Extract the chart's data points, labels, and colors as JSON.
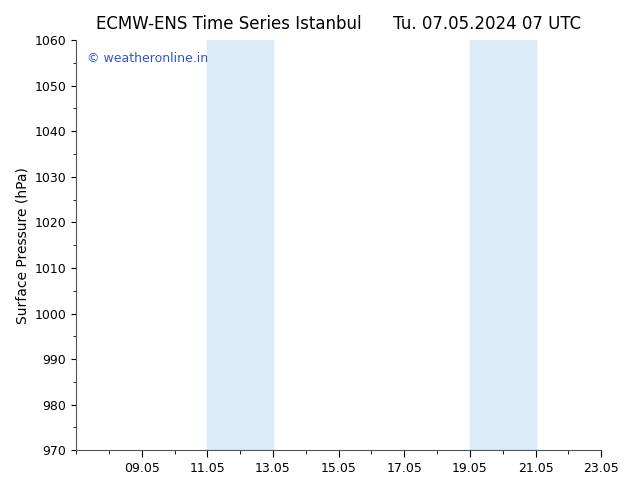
{
  "title_left": "ECMW-ENS Time Series Istanbul",
  "title_right": "Tu. 07.05.2024 07 UTC",
  "ylabel": "Surface Pressure (hPa)",
  "ylim": [
    970,
    1060
  ],
  "yticks": [
    970,
    980,
    990,
    1000,
    1010,
    1020,
    1030,
    1040,
    1050,
    1060
  ],
  "xlim": [
    0,
    16
  ],
  "xtick_labels": [
    "09.05",
    "11.05",
    "13.05",
    "15.05",
    "17.05",
    "19.05",
    "21.05",
    "23.05"
  ],
  "xtick_positions": [
    2,
    4,
    6,
    8,
    10,
    12,
    14,
    16
  ],
  "shaded_bands": [
    {
      "x_start": 4,
      "x_end": 6
    },
    {
      "x_start": 12,
      "x_end": 14
    }
  ],
  "shade_color": "#daeaf8",
  "background_color": "#ffffff",
  "plot_bg_color": "#ffffff",
  "watermark_text": "© weatheronline.in",
  "watermark_color": "#3355cc",
  "title_fontsize": 12,
  "axis_label_fontsize": 10,
  "tick_fontsize": 9,
  "watermark_fontsize": 9
}
